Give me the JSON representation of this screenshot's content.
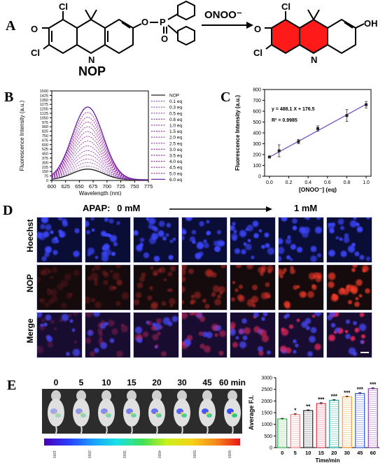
{
  "panels": {
    "A": "A",
    "B": "B",
    "C": "C",
    "D": "D",
    "E": "E"
  },
  "panelA": {
    "probe_name": "NOP",
    "reagent": "ONOO⁻",
    "atoms": {
      "cl": "Cl",
      "o": "O",
      "n": "N",
      "p": "P",
      "oh": "OH"
    },
    "colors": {
      "product_highlight": "#ff1a1a"
    }
  },
  "panelB_chart": {
    "type": "line",
    "xlabel": "Wavelength (nm)",
    "ylabel": "Fluorescence Intensity (a.u.)",
    "xlim": [
      600,
      775
    ],
    "ylim": [
      0,
      1500
    ],
    "xticks": [
      600,
      625,
      650,
      675,
      700,
      725,
      750,
      775
    ],
    "yticks": [
      0,
      75,
      150,
      225,
      300,
      375,
      450,
      525,
      600,
      675,
      750,
      825,
      900,
      975,
      1050,
      1125,
      1200,
      1275,
      1350,
      1425,
      1500
    ],
    "peak_wavelength": 665,
    "peak_width_sigma": 28,
    "series": [
      {
        "name": "NOP",
        "peak": 180
      },
      {
        "name": "0.1 eq",
        "peak": 230
      },
      {
        "name": "0.3 eq",
        "peak": 290
      },
      {
        "name": "0.5 eq",
        "peak": 350
      },
      {
        "name": "0.8 eq",
        "peak": 420
      },
      {
        "name": "1.0 eq",
        "peak": 490
      },
      {
        "name": "1.5 eq",
        "peak": 570
      },
      {
        "name": "2.0 eq",
        "peak": 650
      },
      {
        "name": "2.5 eq",
        "peak": 730
      },
      {
        "name": "3.0 eq",
        "peak": 810
      },
      {
        "name": "3.5 eq",
        "peak": 890
      },
      {
        "name": "4.0 eq",
        "peak": 970
      },
      {
        "name": "4.5 eq",
        "peak": 1050
      },
      {
        "name": "5.0 eq",
        "peak": 1130
      },
      {
        "name": "6.0 eq",
        "peak": 1220
      }
    ]
  },
  "panelC_chart": {
    "type": "scatter",
    "xlabel": "[ONOO⁻] (eq)",
    "ylabel": "Fluorescence Intensity (a.u.)",
    "xlim": [
      -0.05,
      1.05
    ],
    "ylim": [
      0,
      800
    ],
    "xticks": [
      "0.0",
      "0.2",
      "0.4",
      "0.6",
      "0.8",
      "1.0"
    ],
    "yticks": [
      0,
      100,
      200,
      300,
      400,
      500,
      600,
      700,
      800
    ],
    "equation": "y = 488.1 X + 176.5",
    "r2": "R² = 0.9985",
    "fit": {
      "slope": 488.1,
      "intercept": 176.5
    },
    "x": [
      0.0,
      0.1,
      0.3,
      0.5,
      0.8,
      1.0
    ],
    "y": [
      178,
      235,
      320,
      440,
      560,
      660
    ],
    "err": [
      8,
      55,
      20,
      25,
      55,
      30
    ]
  },
  "panelD": {
    "treatment_label": "APAP:",
    "start_conc": "0 mM",
    "end_conc": "1 mM",
    "rows": [
      "Hoechst",
      "NOP",
      "Merge"
    ],
    "columns": 7
  },
  "panelE": {
    "timepoints": [
      "0",
      "5",
      "10",
      "15",
      "20",
      "30",
      "45",
      "60 min"
    ],
    "colorbar_ticks": [
      "1000",
      "2000",
      "3000",
      "4000",
      "5000",
      "6000"
    ]
  },
  "panelE_chart": {
    "type": "bar",
    "xlabel": "Time/min",
    "ylabel": "Average F.I.",
    "ylim": [
      0,
      3000
    ],
    "yticks": [
      0,
      500,
      1000,
      1500,
      2000,
      2500,
      3000
    ],
    "categories": [
      "0",
      "5",
      "10",
      "15",
      "20",
      "30",
      "45",
      "60"
    ],
    "values": [
      1230,
      1420,
      1590,
      1890,
      2030,
      2180,
      2320,
      2530
    ],
    "errors": [
      25,
      30,
      30,
      35,
      30,
      30,
      30,
      30
    ],
    "significance": [
      "",
      "*",
      "**",
      "***",
      "***",
      "***",
      "***",
      "***"
    ],
    "colors": [
      "#2bb34a",
      "#f07a7a",
      "#222222",
      "#d9324a",
      "#18a89a",
      "#f59b2c",
      "#2f55d4",
      "#8a3fb0"
    ]
  }
}
